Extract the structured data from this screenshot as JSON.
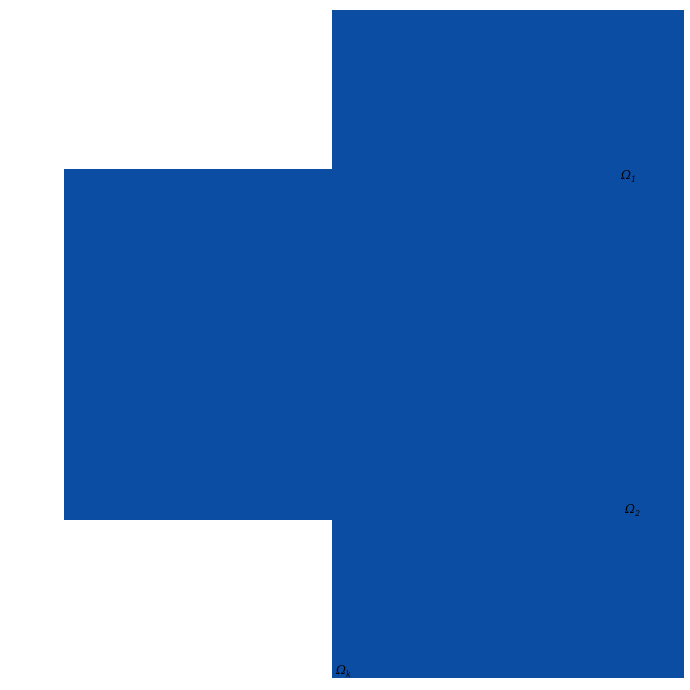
{
  "figure": {
    "description": "Cross-shaped solid region formed by two overlapping rectangles with subdomain labels",
    "fill_color": "#0B4DA2",
    "label_color": "#000000",
    "background_color": "#ffffff",
    "labels": [
      {
        "base": "Ω",
        "sub": "1"
      },
      {
        "base": "Ω",
        "sub": "2"
      },
      {
        "base": "Ω",
        "sub": "k"
      }
    ]
  }
}
